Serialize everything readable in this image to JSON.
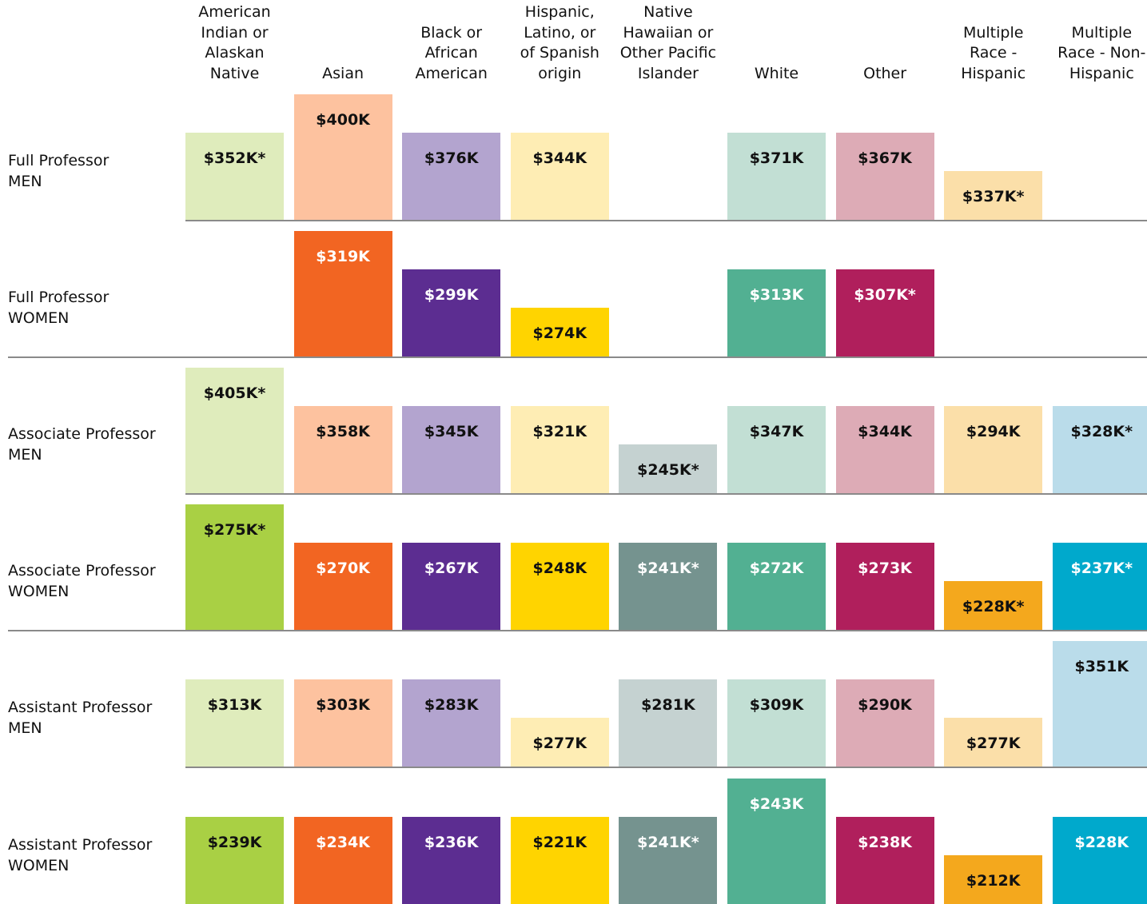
{
  "chart_data": {
    "type": "tiered-bar",
    "categories": [
      "American\nIndian or\nAlaskan\nNative",
      "Asian",
      "Black or\nAfrican\nAmerican",
      "Hispanic,\nLatino, or\nof Spanish\norigin",
      "Native\nHawaiian or\nOther Pacific\nIslander",
      "White",
      "Other",
      "Multiple\nRace -\nHispanic",
      "Multiple\nRace - Non-\nHispanic"
    ],
    "series": [
      {
        "name": "Full Professor\nMEN",
        "values": [
          352,
          400,
          376,
          344,
          null,
          371,
          367,
          337,
          null
        ],
        "value_labels": [
          "$352K*",
          "$400K",
          "$376K",
          "$344K",
          null,
          "$371K",
          "$367K",
          "$337K*",
          null
        ],
        "levels": [
          "mid",
          "high",
          "mid",
          "mid",
          null,
          "mid",
          "mid",
          "low",
          null
        ],
        "colors": [
          "#dfecbc",
          "#fdc29f",
          "#b3a4cf",
          "#feedb4",
          "#c5d2d1",
          "#c2dfd4",
          "#ddabb6",
          "#fbdfa9",
          "#badcea"
        ]
      },
      {
        "name": "Full Professor\nWOMEN",
        "values": [
          null,
          319,
          299,
          274,
          null,
          313,
          307,
          null,
          null
        ],
        "value_labels": [
          null,
          "$319K",
          "$299K",
          "$274K",
          null,
          "$313K",
          "$307K*",
          null,
          null
        ],
        "levels": [
          null,
          "high",
          "mid",
          "low",
          null,
          "mid",
          "mid",
          null,
          null
        ],
        "colors": [
          "#a9d044",
          "#f26522",
          "#5c2d91",
          "#ffd400",
          "#75938f",
          "#52b092",
          "#b01f5c",
          "#f4a81d",
          "#00a9cc"
        ]
      },
      {
        "name": "Associate Professor\nMEN",
        "values": [
          405,
          358,
          345,
          321,
          245,
          347,
          344,
          294,
          328
        ],
        "value_labels": [
          "$405K*",
          "$358K",
          "$345K",
          "$321K",
          "$245K*",
          "$347K",
          "$344K",
          "$294K",
          "$328K*"
        ],
        "levels": [
          "high",
          "mid",
          "mid",
          "mid",
          "low",
          "mid",
          "mid",
          "mid",
          "mid"
        ],
        "colors": [
          "#dfecbc",
          "#fdc29f",
          "#b3a4cf",
          "#feedb4",
          "#c5d2d1",
          "#c2dfd4",
          "#ddabb6",
          "#fbdfa9",
          "#badcea"
        ]
      },
      {
        "name": "Associate Professor\nWOMEN",
        "values": [
          275,
          270,
          267,
          248,
          241,
          272,
          273,
          228,
          237
        ],
        "value_labels": [
          "$275K*",
          "$270K",
          "$267K",
          "$248K",
          "$241K*",
          "$272K",
          "$273K",
          "$228K*",
          "$237K*"
        ],
        "levels": [
          "high",
          "mid",
          "mid",
          "mid",
          "mid",
          "mid",
          "mid",
          "low",
          "mid"
        ],
        "colors": [
          "#a9d044",
          "#f26522",
          "#5c2d91",
          "#ffd400",
          "#75938f",
          "#52b092",
          "#b01f5c",
          "#f4a81d",
          "#00a9cc"
        ]
      },
      {
        "name": "Assistant Professor\nMEN",
        "values": [
          313,
          303,
          283,
          277,
          281,
          309,
          290,
          277,
          351
        ],
        "value_labels": [
          "$313K",
          "$303K",
          "$283K",
          "$277K",
          "$281K",
          "$309K",
          "$290K",
          "$277K",
          "$351K"
        ],
        "levels": [
          "mid",
          "mid",
          "mid",
          "low",
          "mid",
          "mid",
          "mid",
          "low",
          "high"
        ],
        "colors": [
          "#dfecbc",
          "#fdc29f",
          "#b3a4cf",
          "#feedb4",
          "#c5d2d1",
          "#c2dfd4",
          "#ddabb6",
          "#fbdfa9",
          "#badcea"
        ]
      },
      {
        "name": "Assistant Professor\nWOMEN",
        "values": [
          239,
          234,
          236,
          221,
          241,
          243,
          238,
          212,
          228
        ],
        "value_labels": [
          "$239K",
          "$234K",
          "$236K",
          "$221K",
          "$241K*",
          "$243K",
          "$238K",
          "$212K",
          "$228K"
        ],
        "levels": [
          "mid",
          "mid",
          "mid",
          "mid",
          "mid",
          "high",
          "mid",
          "low",
          "mid"
        ],
        "colors": [
          "#a9d044",
          "#f26522",
          "#5c2d91",
          "#ffd400",
          "#75938f",
          "#52b092",
          "#b01f5c",
          "#f4a81d",
          "#00a9cc"
        ]
      }
    ]
  }
}
